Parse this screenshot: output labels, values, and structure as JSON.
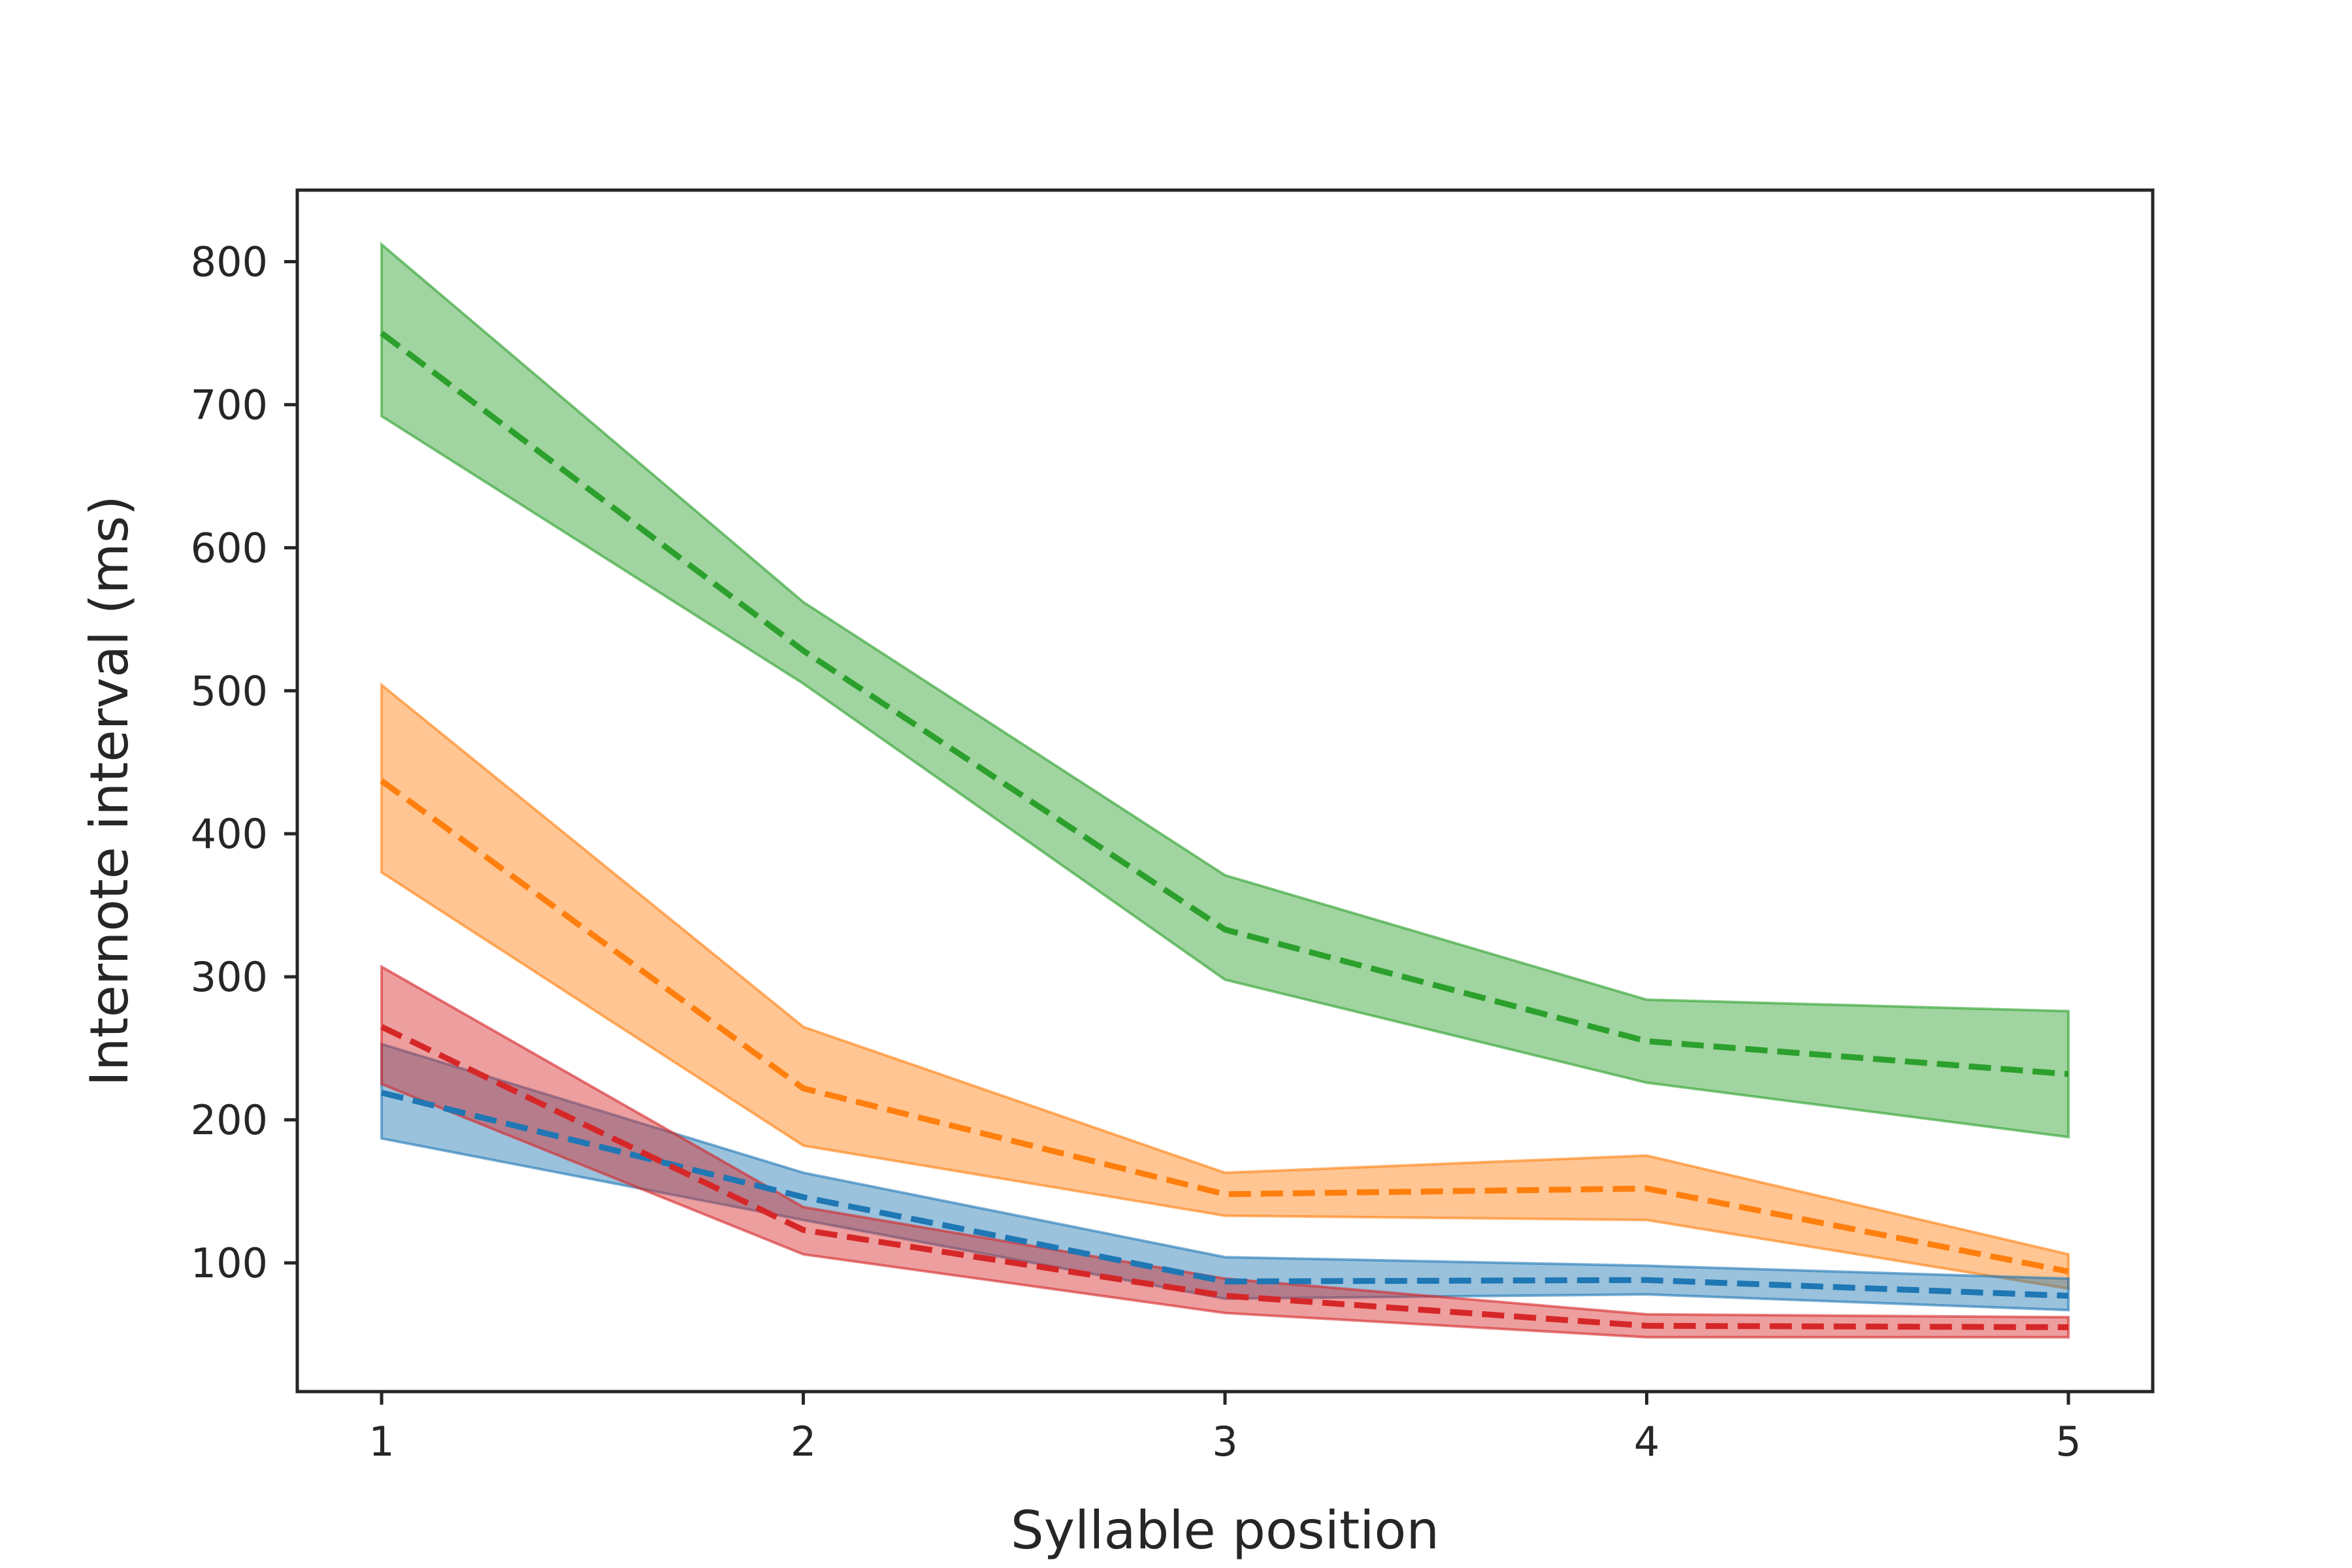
{
  "chart_data": {
    "type": "line",
    "title": "",
    "xlabel": "Syllable position",
    "ylabel": "Internote interval (ms)",
    "x": [
      1,
      2,
      3,
      4,
      5
    ],
    "xlim": [
      0.8,
      5.2
    ],
    "ylim": [
      10,
      850
    ],
    "xticks": [
      1,
      2,
      3,
      4,
      5
    ],
    "yticks": [
      100,
      200,
      300,
      400,
      500,
      600,
      700,
      800
    ],
    "grid": false,
    "legend": "none",
    "line_style": "dashed",
    "series": [
      {
        "color": "#2ca02c",
        "mean": [
          750,
          528,
          333,
          255,
          232
        ],
        "lower": [
          692,
          505,
          298,
          226,
          188
        ],
        "upper": [
          812,
          562,
          371,
          284,
          276
        ]
      },
      {
        "color": "#ff7f0e",
        "mean": [
          437,
          222,
          148,
          152,
          94
        ],
        "lower": [
          373,
          182,
          133,
          130,
          82
        ],
        "upper": [
          504,
          265,
          163,
          175,
          106
        ]
      },
      {
        "color": "#1f77b4",
        "mean": [
          219,
          146,
          87,
          88,
          77
        ],
        "lower": [
          187,
          130,
          75,
          78,
          67
        ],
        "upper": [
          253,
          163,
          104,
          98,
          89
        ]
      },
      {
        "color": "#d62728",
        "mean": [
          265,
          123,
          77,
          56,
          55
        ],
        "lower": [
          225,
          106,
          65,
          48,
          48
        ],
        "upper": [
          307,
          139,
          89,
          64,
          62
        ]
      }
    ]
  }
}
